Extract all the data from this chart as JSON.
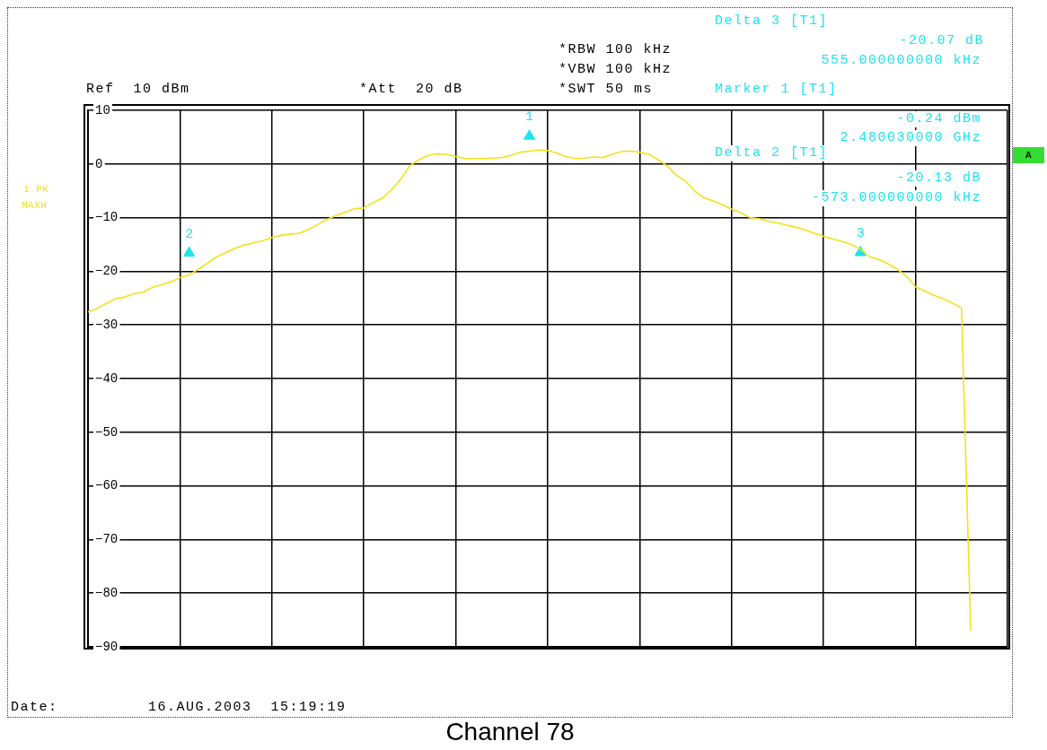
{
  "chart_data": {
    "type": "line",
    "title": "Channel 78",
    "categories": [
      null,
      null,
      null,
      null,
      null,
      null,
      null,
      null,
      null,
      null,
      null,
      null,
      null,
      null,
      null,
      null,
      null,
      null,
      null,
      null,
      null,
      null,
      null,
      null,
      null,
      null,
      null,
      null,
      null,
      null,
      null,
      null,
      null,
      null,
      null,
      null,
      null,
      null,
      null,
      null,
      null,
      null,
      null,
      null,
      null,
      null,
      null,
      null,
      null,
      null,
      null,
      null,
      null,
      null,
      null,
      null,
      null,
      null,
      null,
      null,
      null,
      null,
      null,
      null,
      null,
      null,
      null,
      null,
      null,
      null,
      null,
      null,
      null,
      null,
      null,
      null,
      null,
      null,
      null,
      null,
      null,
      null,
      null,
      null,
      null,
      null,
      null,
      null,
      null,
      null,
      null,
      null,
      null,
      null,
      null,
      null,
      null,
      null,
      null,
      null,
      null
    ],
    "series": [
      {
        "type": "line",
        "color": "#f2e21c",
        "marker": "none",
        "line_style": "solid",
        "values": [
          -27.6,
          -26.9,
          -26,
          -25.1,
          -24.8,
          -24.2,
          -23.9,
          -23,
          -22.5,
          -22,
          -21.2,
          -20.7,
          -19.6,
          -18.5,
          -17.3,
          -16.5,
          -15.7,
          -15.1,
          -14.7,
          -14.3,
          -13.7,
          -13.3,
          -13.1,
          -12.9,
          -12.2,
          -11.3,
          -10.3,
          -9.6,
          -9,
          -8.3,
          -8.2,
          -7.2,
          -6.4,
          -4.8,
          -2.9,
          -0.3,
          0.8,
          1.6,
          1.9,
          1.8,
          1.4,
          1,
          1,
          1,
          1.1,
          1.2,
          1.6,
          2.2,
          2.4,
          2.6,
          2.5,
          2,
          1.4,
          1,
          1.1,
          1.3,
          1.2,
          1.8,
          2.3,
          2.4,
          2.2,
          1.8,
          0.8,
          -0.4,
          -2.1,
          -3.2,
          -5.1,
          -6.3,
          -6.9,
          -7.6,
          -8.4,
          -9.1,
          -10,
          -10.2,
          -10.7,
          -11,
          -11.4,
          -11.8,
          -12.3,
          -12.9,
          -13.5,
          -14,
          -14.4,
          -15,
          -15.9,
          -17.3,
          -17.8,
          -18.6,
          -19.6,
          -20.9,
          -22.9,
          -23.7,
          -24.5,
          -25.1,
          -25.9,
          -26.9,
          -87,
          null,
          null,
          null,
          null
        ]
      },
      {
        "type": "scatter",
        "name": "1",
        "color": "#1ee3ef",
        "marker": "triangle",
        "values": [
          null,
          null,
          null,
          null,
          null,
          null,
          null,
          null,
          null,
          null,
          null,
          null,
          null,
          null,
          null,
          null,
          null,
          null,
          null,
          null,
          null,
          null,
          null,
          null,
          null,
          null,
          null,
          null,
          null,
          null,
          null,
          null,
          null,
          null,
          null,
          null,
          null,
          null,
          null,
          null,
          null,
          null,
          null,
          null,
          null,
          null,
          null,
          null,
          5.2,
          null,
          null,
          null,
          null,
          null,
          null,
          null,
          null,
          null,
          null,
          null,
          null,
          null,
          null,
          null,
          null,
          null,
          null,
          null,
          null,
          null,
          null,
          null,
          null,
          null,
          null,
          null,
          null,
          null,
          null,
          null,
          null,
          null,
          null,
          null,
          null,
          null,
          null,
          null,
          null,
          null,
          null,
          null,
          null,
          null,
          null,
          null,
          null,
          null,
          null,
          null,
          null
        ]
      },
      {
        "type": "scatter",
        "name": "2",
        "color": "#1ee3ef",
        "marker": "triangle",
        "values": [
          null,
          null,
          null,
          null,
          null,
          null,
          null,
          null,
          null,
          null,
          null,
          -16.6,
          null,
          null,
          null,
          null,
          null,
          null,
          null,
          null,
          null,
          null,
          null,
          null,
          null,
          null,
          null,
          null,
          null,
          null,
          null,
          null,
          null,
          null,
          null,
          null,
          null,
          null,
          null,
          null,
          null,
          null,
          null,
          null,
          null,
          null,
          null,
          null,
          null,
          null,
          null,
          null,
          null,
          null,
          null,
          null,
          null,
          null,
          null,
          null,
          null,
          null,
          null,
          null,
          null,
          null,
          null,
          null,
          null,
          null,
          null,
          null,
          null,
          null,
          null,
          null,
          null,
          null,
          null,
          null,
          null,
          null,
          null,
          null,
          null,
          null,
          null,
          null,
          null,
          null,
          null,
          null,
          null,
          null,
          null,
          null,
          null,
          null,
          null,
          null,
          null
        ]
      },
      {
        "type": "scatter",
        "name": "3",
        "color": "#1ee3ef",
        "marker": "triangle",
        "values": [
          null,
          null,
          null,
          null,
          null,
          null,
          null,
          null,
          null,
          null,
          null,
          null,
          null,
          null,
          null,
          null,
          null,
          null,
          null,
          null,
          null,
          null,
          null,
          null,
          null,
          null,
          null,
          null,
          null,
          null,
          null,
          null,
          null,
          null,
          null,
          null,
          null,
          null,
          null,
          null,
          null,
          null,
          null,
          null,
          null,
          null,
          null,
          null,
          null,
          null,
          null,
          null,
          null,
          null,
          null,
          null,
          null,
          null,
          null,
          null,
          null,
          null,
          null,
          null,
          null,
          null,
          null,
          null,
          null,
          null,
          null,
          null,
          null,
          null,
          null,
          null,
          null,
          null,
          null,
          null,
          null,
          null,
          null,
          null,
          -16.5,
          null,
          null,
          null,
          null,
          null,
          null,
          null,
          null,
          null,
          null,
          null,
          null,
          null,
          null,
          null,
          null
        ]
      }
    ],
    "ylim": [
      -90,
      10
    ],
    "yticks": [
      -90,
      -80,
      -70,
      -60,
      -50,
      -40,
      -30,
      -20,
      -10,
      0,
      10
    ],
    "grid": true,
    "annotations": [
      "Delta 3 [T1]",
      "-20.07 dB",
      "555.000000000 kHz",
      "*RBW 100 kHz",
      "*VBW 100 kHz",
      "*SWT 50 ms",
      "Ref  10 dBm",
      "*Att  20 dB",
      "Marker 1 [T1]",
      "-0.24 dBm",
      "2.480030000 GHz",
      "Delta 2 [T1]",
      "-20.13 dB",
      "-573.000000000 kHz",
      "1 PK",
      "MAXH",
      "A",
      "Date:",
      "16.AUG.2003  15:19:19"
    ]
  }
}
